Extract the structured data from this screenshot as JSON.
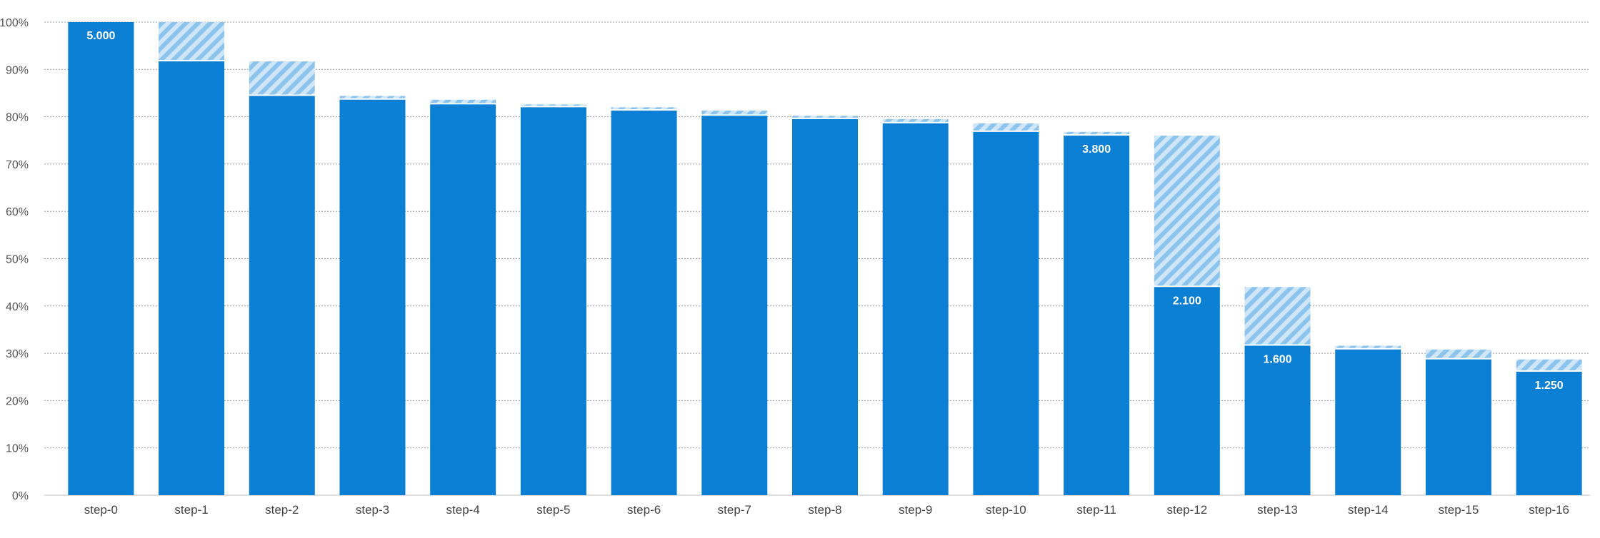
{
  "chart_data": {
    "type": "bar",
    "stacked": true,
    "categories": [
      "step-0",
      "step-1",
      "step-2",
      "step-3",
      "step-4",
      "step-5",
      "step-6",
      "step-7",
      "step-8",
      "step-9",
      "step-10",
      "step-11",
      "step-12",
      "step-13",
      "step-14",
      "step-15",
      "step-16"
    ],
    "series": [
      {
        "values": [
          100,
          91.7,
          84.4,
          83.6,
          82.6,
          82.0,
          81.3,
          80.2,
          79.5,
          78.6,
          76.8,
          76.0,
          44.0,
          31.6,
          30.8,
          28.7,
          26.1
        ],
        "color": "#0a7fd3",
        "style": "solid"
      },
      {
        "values": [
          0,
          8.3,
          7.3,
          0.8,
          1.0,
          0.6,
          0.7,
          1.1,
          0.7,
          0.9,
          1.8,
          0.8,
          32.0,
          12.4,
          0.8,
          2.1,
          2.6
        ],
        "color": "#a9d3f2",
        "style": "hatched"
      }
    ],
    "data_labels": [
      {
        "index": 0,
        "text": "5.000"
      },
      {
        "index": 11,
        "text": "3.800"
      },
      {
        "index": 12,
        "text": "2.100"
      },
      {
        "index": 13,
        "text": "1.600"
      },
      {
        "index": 16,
        "text": "1.250"
      }
    ],
    "y_ticks": [
      "0%",
      "10%",
      "20%",
      "30%",
      "40%",
      "50%",
      "60%",
      "70%",
      "80%",
      "90%",
      "100%"
    ],
    "ylim": [
      0,
      100
    ],
    "grid": true,
    "title": "",
    "xlabel": "",
    "ylabel": ""
  }
}
